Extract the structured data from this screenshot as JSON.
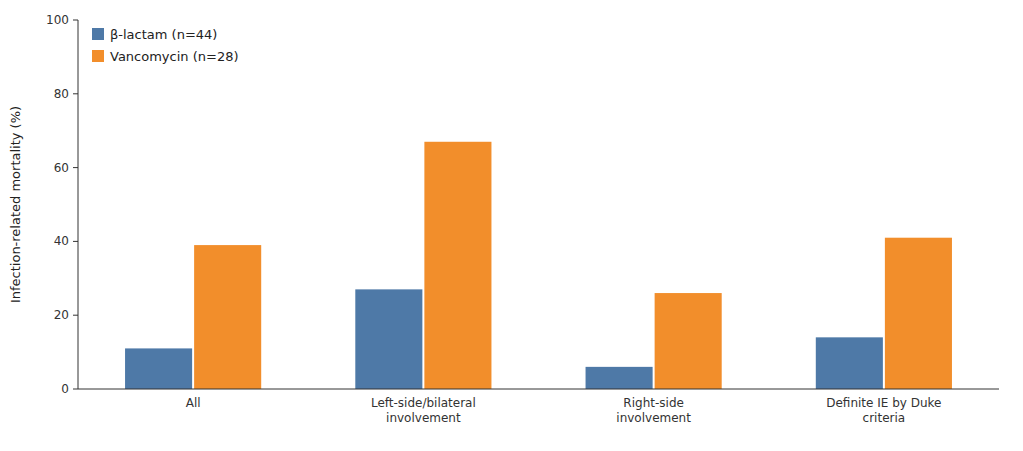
{
  "chart_data": {
    "type": "bar",
    "y_label": "Infection-related mortality (%)",
    "categories": [
      "All",
      "Left-side/bilateral\ninvolvement",
      "Right-side\ninvolvement",
      "Definite IE by Duke\ncriteria"
    ],
    "series": [
      {
        "name": "β-lactam (n=44)",
        "values": [
          11,
          27,
          6,
          14
        ]
      },
      {
        "name": "Vancomycin (n=28)",
        "values": [
          39,
          67,
          26,
          41
        ]
      }
    ],
    "ylim": [
      0,
      100
    ],
    "yticks": [
      0,
      20,
      40,
      60,
      80,
      100
    ],
    "grid": false,
    "legend": "upper left"
  }
}
